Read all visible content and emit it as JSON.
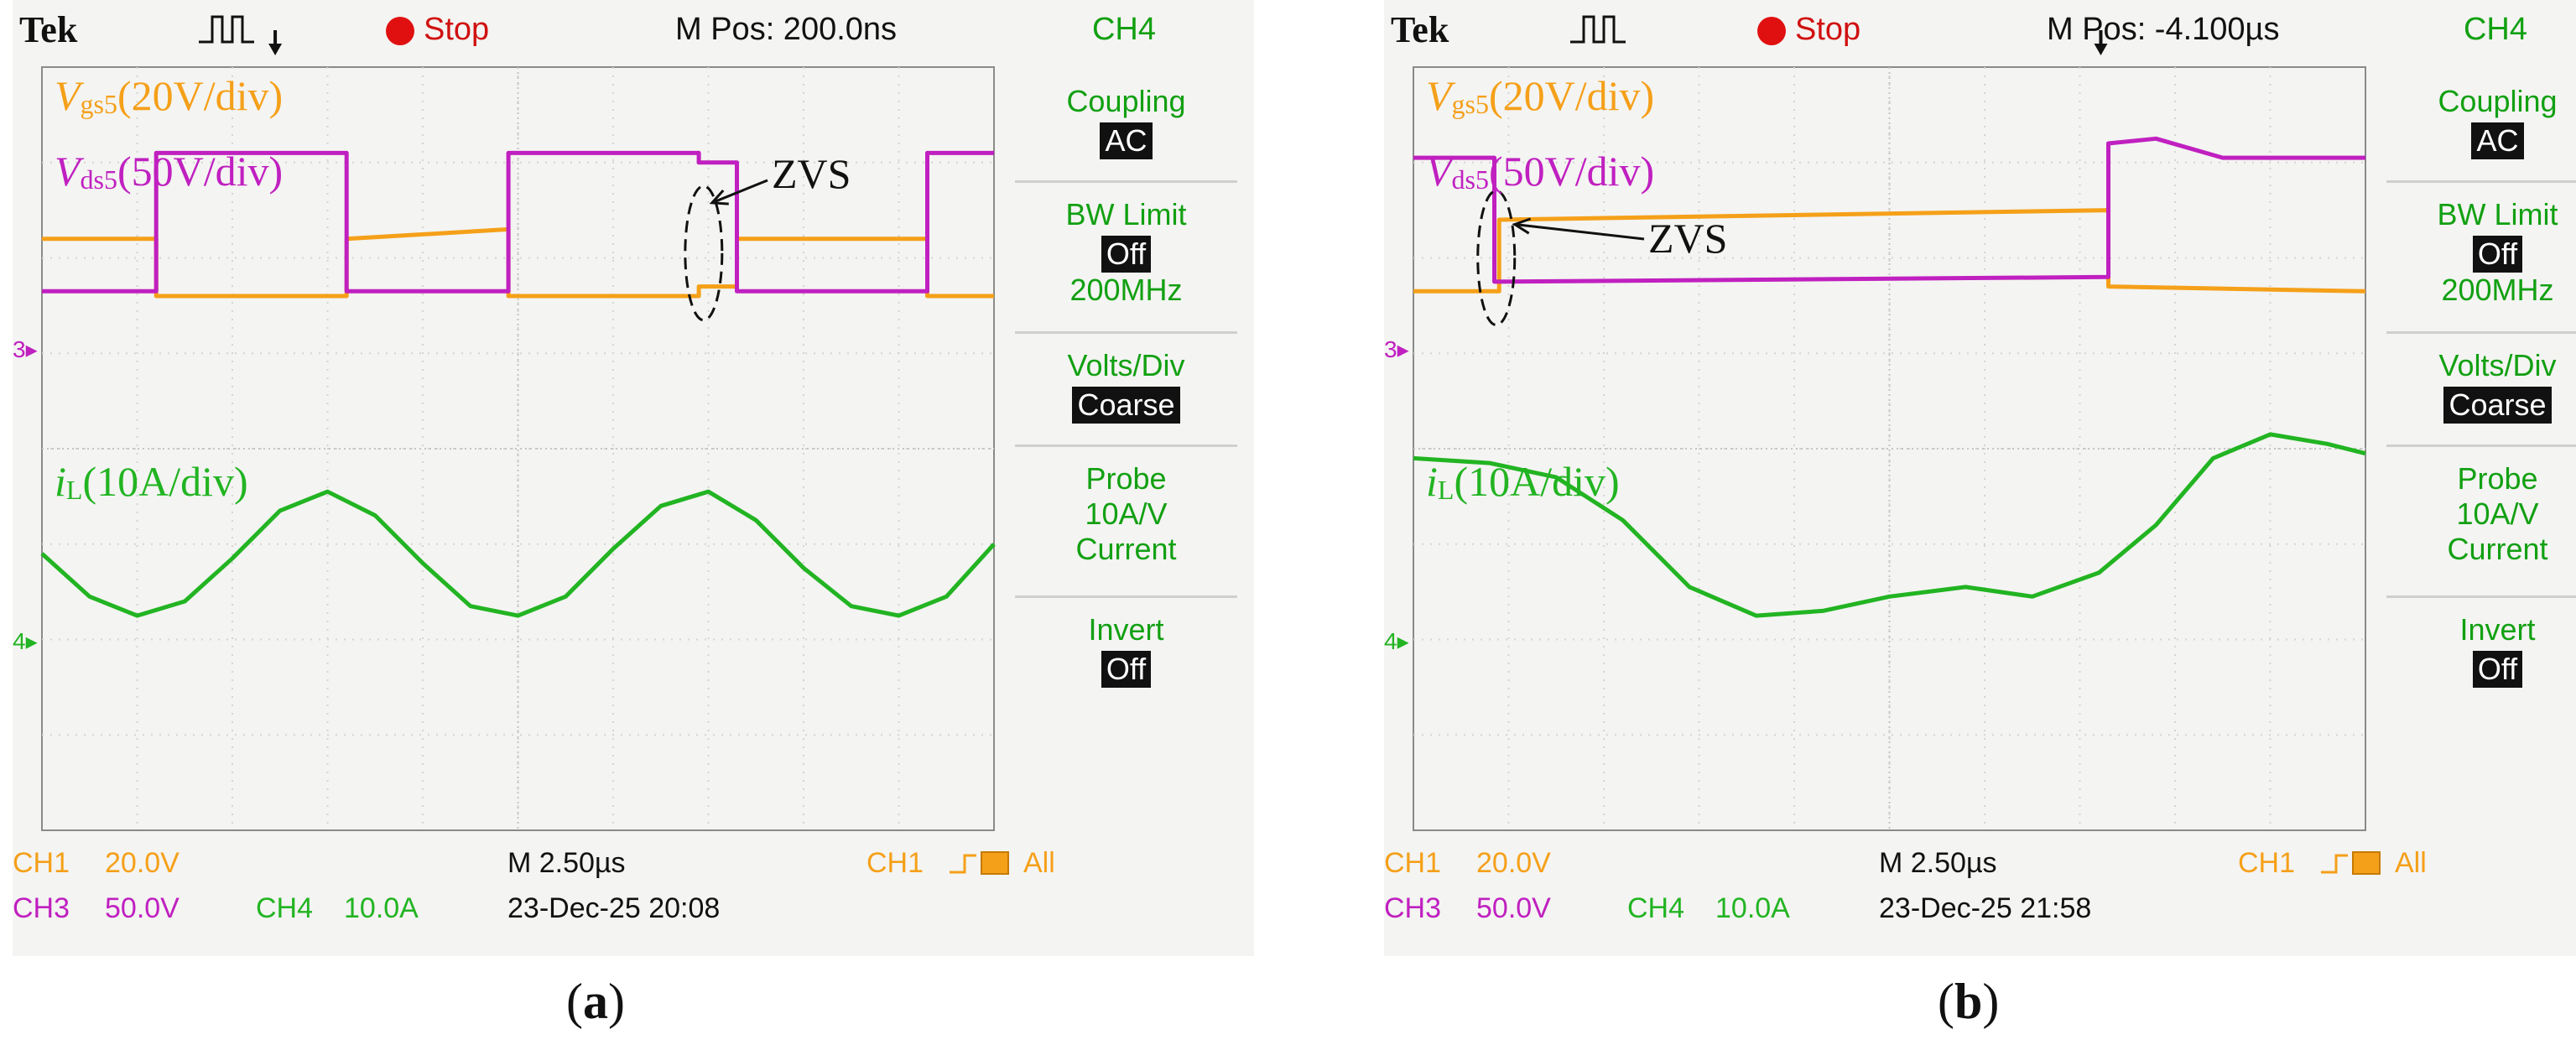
{
  "panels": [
    {
      "id": "a",
      "header": {
        "brand": "Tek",
        "status": "Stop",
        "mpos": "M Pos: 200.0ns",
        "channel": "CH4"
      },
      "menu": {
        "coupling_label": "Coupling",
        "coupling_value": "AC",
        "bw_label": "BW Limit",
        "bw_value": "Off",
        "bw_freq": "200MHz",
        "volts_label": "Volts/Div",
        "volts_value": "Coarse",
        "probe_label": "Probe",
        "probe_value": "10A/V",
        "probe_type": "Current",
        "invert_label": "Invert",
        "invert_value": "Off"
      },
      "labels": {
        "vgs_sym": "V",
        "vgs_sub": "gs5",
        "vgs_scale": "(20V/div)",
        "vds_sym": "V",
        "vds_sub": "ds5",
        "vds_scale": "(50V/div)",
        "il_sym": "i",
        "il_sub": "L",
        "il_scale": "(10A/div)",
        "zvs": "ZVS"
      },
      "markers": {
        "ch3": "3",
        "ch4": "4"
      },
      "status_bar": {
        "ch1": "CH1",
        "ch1_scale": "20.0V",
        "timebase": "M 2.50µs",
        "trig_ch": "CH1",
        "trig_mode": "All",
        "ch3": "CH3",
        "ch3_scale": "50.0V",
        "ch4": "CH4",
        "ch4_scale": "10.0A",
        "datetime": "23-Dec-25 20:08"
      },
      "caption": {
        "open": "(",
        "letter": "a",
        "close": ")"
      }
    },
    {
      "id": "b",
      "header": {
        "brand": "Tek",
        "status": "Stop",
        "mpos": "M Pos: -4.100µs",
        "channel": "CH4"
      },
      "menu": {
        "coupling_label": "Coupling",
        "coupling_value": "AC",
        "bw_label": "BW Limit",
        "bw_value": "Off",
        "bw_freq": "200MHz",
        "volts_label": "Volts/Div",
        "volts_value": "Coarse",
        "probe_label": "Probe",
        "probe_value": "10A/V",
        "probe_type": "Current",
        "invert_label": "Invert",
        "invert_value": "Off"
      },
      "labels": {
        "vgs_sym": "V",
        "vgs_sub": "gs5",
        "vgs_scale": "(20V/div)",
        "vds_sym": "V",
        "vds_sub": "ds5",
        "vds_scale": "(50V/div)",
        "il_sym": "i",
        "il_sub": "L",
        "il_scale": "(10A/div)",
        "zvs": "ZVS"
      },
      "markers": {
        "ch3": "3",
        "ch4": "4"
      },
      "status_bar": {
        "ch1": "CH1",
        "ch1_scale": "20.0V",
        "timebase": "M 2.50µs",
        "trig_ch": "CH1",
        "trig_mode": "All",
        "ch3": "CH3",
        "ch3_scale": "50.0V",
        "ch4": "CH4",
        "ch4_scale": "10.0A",
        "datetime": "23-Dec-25 21:58"
      },
      "caption": {
        "open": "(",
        "letter": "b",
        "close": ")"
      }
    }
  ],
  "colors": {
    "vgs": "#f5a019",
    "vds": "#c020c0",
    "il": "#22b422",
    "menu": "#12a012",
    "stop": "#e01010",
    "grid": "#d4d4d4"
  },
  "chart_data": [
    {
      "type": "line",
      "x_unit": "div",
      "y_unit": "div",
      "xlim": [
        0,
        10
      ],
      "ylim": [
        -4,
        4
      ],
      "series": [
        {
          "name": "Vgs5",
          "x": [
            0,
            1.2,
            1.2,
            3.2,
            3.2,
            4.9,
            4.9,
            6.9,
            6.9,
            7.3,
            7.3,
            9.3,
            9.3,
            10
          ],
          "y": [
            2.2,
            2.2,
            1.6,
            1.6,
            2.2,
            2.3,
            1.6,
            1.6,
            1.7,
            1.7,
            2.2,
            2.2,
            1.6,
            1.6
          ]
        },
        {
          "name": "Vds5",
          "x": [
            0,
            1.2,
            1.2,
            3.2,
            3.2,
            4.9,
            4.9,
            6.9,
            6.9,
            7.3,
            7.3,
            9.3,
            9.3,
            10
          ],
          "y": [
            1.65,
            1.65,
            3.1,
            3.1,
            1.65,
            1.65,
            3.1,
            3.1,
            3.0,
            3.0,
            1.65,
            1.65,
            3.1,
            3.1
          ]
        },
        {
          "name": "iL",
          "x": [
            0,
            0.5,
            1.0,
            1.5,
            2.0,
            2.5,
            3.0,
            3.5,
            4.0,
            4.5,
            5.0,
            5.5,
            6.0,
            6.5,
            7.0,
            7.5,
            8.0,
            8.5,
            9.0,
            9.5,
            10
          ],
          "y": [
            -1.1,
            -1.55,
            -1.75,
            -1.6,
            -1.15,
            -0.65,
            -0.45,
            -0.7,
            -1.2,
            -1.65,
            -1.75,
            -1.55,
            -1.05,
            -0.6,
            -0.45,
            -0.75,
            -1.25,
            -1.65,
            -1.75,
            -1.55,
            -1.0
          ]
        }
      ]
    },
    {
      "type": "line",
      "x_unit": "div",
      "y_unit": "div",
      "xlim": [
        0,
        10
      ],
      "ylim": [
        -4,
        4
      ],
      "series": [
        {
          "name": "Vgs5",
          "x": [
            0,
            0.9,
            0.9,
            7.3,
            7.3,
            10
          ],
          "y": [
            1.65,
            1.65,
            2.4,
            2.5,
            1.7,
            1.65
          ]
        },
        {
          "name": "Vds5",
          "x": [
            0,
            0.85,
            0.85,
            7.3,
            7.3,
            7.8,
            8.5,
            10
          ],
          "y": [
            3.05,
            3.05,
            1.75,
            1.8,
            3.2,
            3.25,
            3.05,
            3.05
          ]
        },
        {
          "name": "iL",
          "x": [
            0,
            0.8,
            1.5,
            2.2,
            2.9,
            3.6,
            4.3,
            5.0,
            5.8,
            6.5,
            7.2,
            7.8,
            8.4,
            9.0,
            9.6,
            10
          ],
          "y": [
            -0.1,
            -0.15,
            -0.3,
            -0.75,
            -1.45,
            -1.75,
            -1.7,
            -1.55,
            -1.45,
            -1.55,
            -1.3,
            -0.8,
            -0.1,
            0.15,
            0.05,
            -0.05
          ]
        }
      ]
    }
  ]
}
